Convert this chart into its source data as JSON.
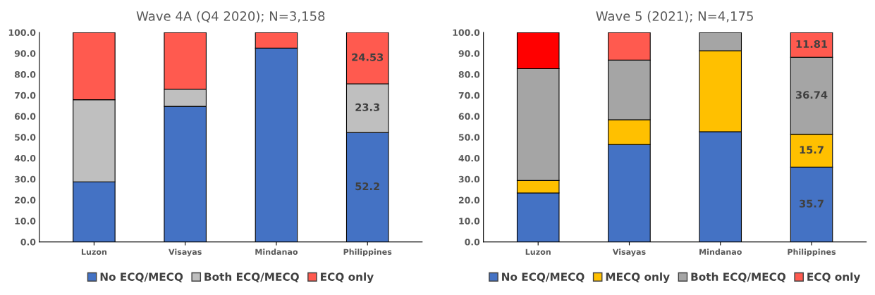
{
  "chart_data": [
    {
      "type": "bar",
      "title": "Wave 4A (Q4 2020); N=3,158",
      "categories": [
        "Luzon",
        "Visayas",
        "Mindanao",
        "Philippines"
      ],
      "stacked": true,
      "ylim": [
        0,
        100
      ],
      "yticks": [
        {
          "value": 0,
          "label": "0.0"
        },
        {
          "value": 10,
          "label": "10.0"
        },
        {
          "value": 20,
          "label": "20.0"
        },
        {
          "value": 30,
          "label": "30.0"
        },
        {
          "value": 40,
          "label": "40.0"
        },
        {
          "value": 50,
          "label": "50.0"
        },
        {
          "value": 60,
          "label": "60.0"
        },
        {
          "value": 70,
          "label": "70.0"
        },
        {
          "value": 80,
          "label": "80.0"
        },
        {
          "value": 90,
          "label": "90.0"
        },
        {
          "value": 100,
          "label": "100.0"
        }
      ],
      "grid": false,
      "legend": "bottom",
      "series": [
        {
          "name": "No ECQ/MECQ",
          "color": "#4472c4",
          "values": [
            28.7,
            64.7,
            92.5,
            52.2
          ],
          "value_labels": [
            null,
            null,
            null,
            "52.2"
          ]
        },
        {
          "name": "Both ECQ/MECQ",
          "color": "#bfbfbf",
          "values": [
            39.2,
            8.2,
            0,
            23.3
          ],
          "value_labels": [
            null,
            null,
            null,
            "23.3"
          ]
        },
        {
          "name": "ECQ only",
          "color": "#ff5a4f",
          "values": [
            32.1,
            27.1,
            7.5,
            24.53
          ],
          "value_labels": [
            null,
            null,
            null,
            "24.53"
          ]
        }
      ]
    },
    {
      "type": "bar",
      "title": "Wave 5 (2021); N=4,175",
      "categories": [
        "Luzon",
        "Visayas",
        "Mindanao",
        "Philippines"
      ],
      "stacked": true,
      "ylim": [
        0,
        100
      ],
      "yticks": [
        {
          "value": 0,
          "label": "0.0"
        },
        {
          "value": 10,
          "label": "10.0"
        },
        {
          "value": 20,
          "label": "20.0"
        },
        {
          "value": 30,
          "label": "30.0"
        },
        {
          "value": 40,
          "label": "40.0"
        },
        {
          "value": 50,
          "label": "50.0"
        },
        {
          "value": 60,
          "label": "60.0"
        },
        {
          "value": 70,
          "label": "70.0"
        },
        {
          "value": 80,
          "label": "80.0"
        },
        {
          "value": 90,
          "label": "90.0"
        },
        {
          "value": 100,
          "label": "100.0"
        }
      ],
      "grid": false,
      "legend": "bottom",
      "series": [
        {
          "name": "No ECQ/MECQ",
          "color": "#4472c4",
          "values": [
            23.4,
            46.5,
            52.6,
            35.7
          ],
          "value_labels": [
            null,
            null,
            null,
            "35.7"
          ]
        },
        {
          "name": "MECQ only",
          "color": "#ffc000",
          "values": [
            5.9,
            11.8,
            38.7,
            15.7
          ],
          "value_labels": [
            null,
            null,
            null,
            "15.7"
          ]
        },
        {
          "name": "Both ECQ/MECQ",
          "color": "#a5a5a5",
          "values": [
            53.4,
            28.5,
            8.7,
            36.74
          ],
          "value_labels": [
            null,
            null,
            null,
            "36.74"
          ]
        },
        {
          "name": "ECQ only",
          "color": "#ff5a4f",
          "colors": [
            "#ff0000",
            "#ff5a4f",
            "#ff5a4f",
            "#ff5a4f"
          ],
          "values": [
            17.3,
            13.2,
            0,
            11.81
          ],
          "value_labels": [
            null,
            null,
            null,
            "11.81"
          ]
        }
      ]
    }
  ]
}
